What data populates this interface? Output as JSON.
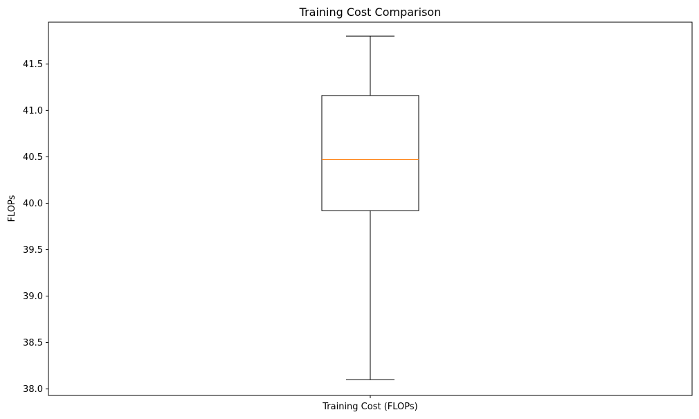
{
  "chart_data": {
    "type": "box",
    "title": "Training Cost Comparison",
    "xlabel": "",
    "ylabel": "FLOPs",
    "categories": [
      "Training Cost (FLOPs)"
    ],
    "boxes": [
      {
        "category": "Training Cost (FLOPs)",
        "whisker_low": 38.1,
        "q1": 39.92,
        "median": 40.47,
        "q3": 41.16,
        "whisker_high": 41.8
      }
    ],
    "ylim": [
      37.93,
      41.95
    ],
    "yticks": [
      38.0,
      38.5,
      39.0,
      39.5,
      40.0,
      40.5,
      41.0,
      41.5
    ],
    "ytick_labels": [
      "38.0",
      "38.5",
      "39.0",
      "39.5",
      "40.0",
      "40.5",
      "41.0",
      "41.5"
    ],
    "grid": false,
    "legend": "none",
    "colors": {
      "box": "#000000",
      "median": "#ff7f0e",
      "background": "#ffffff"
    }
  }
}
